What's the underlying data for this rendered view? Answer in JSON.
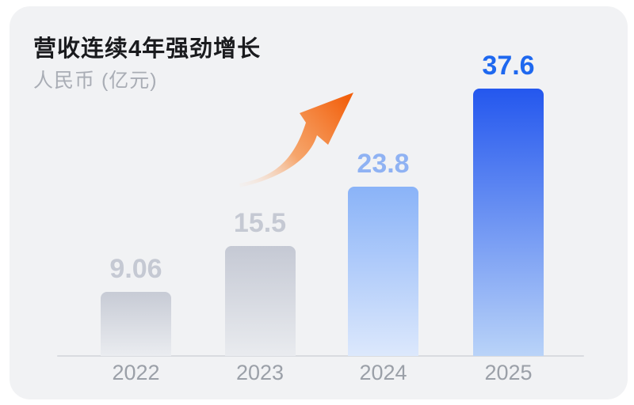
{
  "card": {
    "title": "营收连续4年强劲增长",
    "subtitle": "人民币 (亿元)"
  },
  "colors": {
    "page_bg": "#ffffff",
    "card_bg": "#f1f2f4",
    "title": "#1a1b1e",
    "subtitle": "#a9adb5",
    "baseline": "#d9dbe0",
    "year_label": "#9ba0a8",
    "arrow_tail": "#fbe3d2",
    "arrow_mid": "#f78b3d",
    "arrow_head": "#f2600d",
    "accent_blue": "#1e68ef"
  },
  "chart_data": {
    "type": "bar",
    "title": "营收连续4年强劲增长",
    "subtitle": "人民币 (亿元)",
    "currency": "人民币",
    "unit": "亿元",
    "categories": [
      "2022",
      "2023",
      "2024",
      "2025"
    ],
    "values": [
      9.06,
      15.5,
      23.8,
      37.6
    ],
    "value_labels": [
      "9.06",
      "15.5",
      "23.8",
      "37.6"
    ],
    "ylim": [
      0,
      40
    ],
    "grid": false,
    "legend": false,
    "annotations": [
      "upward-trend-arrow"
    ],
    "bar_styles": [
      {
        "top": "#c7cbd5",
        "bottom": "#eaecf0",
        "label_color": "#c5c9d3"
      },
      {
        "top": "#c5c9d4",
        "bottom": "#e9ebef",
        "label_color": "#c5c9d3"
      },
      {
        "top": "#8ab3f8",
        "bottom": "#dce8fc",
        "label_color": "#8fb2f3"
      },
      {
        "top": "#2457ee",
        "bottom": "#b9d3f8",
        "label_color": "#1e68ef"
      }
    ]
  }
}
